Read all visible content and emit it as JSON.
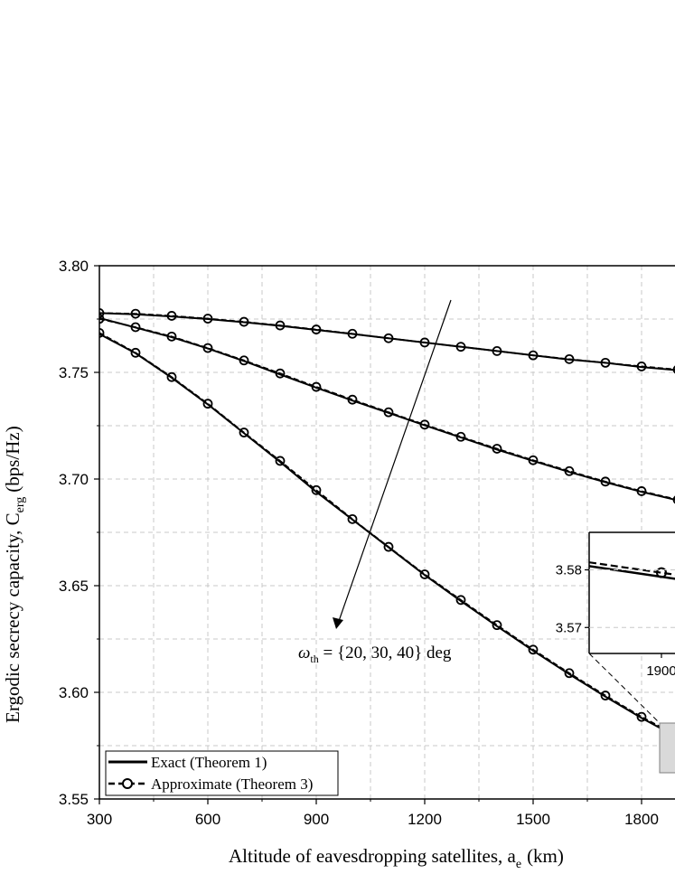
{
  "chart_data": {
    "type": "line",
    "xlabel": "Altitude of eavesdropping satellites, a",
    "xlabel_sub": "e",
    "xlabel_unit": "(km)",
    "ylabel": "Ergodic secrecy capacity, C",
    "ylabel_sub": "erg",
    "ylabel_unit": "(bps/Hz)",
    "xlim": [
      300,
      1900
    ],
    "ylim": [
      3.55,
      3.8
    ],
    "xticks": [
      "300",
      "600",
      "900",
      "1200",
      "1500",
      "1800"
    ],
    "yticks": [
      "3.55",
      "3.60",
      "3.65",
      "3.70",
      "3.75",
      "3.80"
    ],
    "grid": true,
    "legend_position": "bottom-left",
    "legend": [
      "Exact (Theorem 1)",
      "Approximate (Theorem 3)"
    ],
    "annotation": {
      "symbol": "ω",
      "sub": "th",
      "text": " = {20, 30, 40} deg"
    },
    "x": [
      300,
      400,
      500,
      600,
      700,
      800,
      900,
      1000,
      1100,
      1200,
      1300,
      1400,
      1500,
      1600,
      1700,
      1800,
      1900
    ],
    "series": [
      {
        "name": "20 deg",
        "exact": [
          3.7778,
          3.7772,
          3.7762,
          3.775,
          3.7735,
          3.7718,
          3.7699,
          3.768,
          3.766,
          3.764,
          3.762,
          3.76,
          3.758,
          3.756,
          3.7545,
          3.7525,
          3.751
        ],
        "approx": [
          3.7778,
          3.7775,
          3.7765,
          3.7752,
          3.7737,
          3.772,
          3.7701,
          3.7681,
          3.766,
          3.764,
          3.762,
          3.76,
          3.758,
          3.7562,
          3.7545,
          3.7528,
          3.7513
        ]
      },
      {
        "name": "30 deg",
        "exact": [
          3.7755,
          3.771,
          3.7665,
          3.7612,
          3.7553,
          3.749,
          3.7428,
          3.7368,
          3.731,
          3.7252,
          3.7195,
          3.7138,
          3.7085,
          3.7033,
          3.6985,
          3.694,
          3.69
        ],
        "approx": [
          3.7751,
          3.7712,
          3.7668,
          3.7614,
          3.7556,
          3.7495,
          3.7432,
          3.7372,
          3.7313,
          3.7255,
          3.7198,
          3.7142,
          3.7088,
          3.7037,
          3.6988,
          3.6943,
          3.6903
        ]
      },
      {
        "name": "40 deg",
        "exact": [
          3.768,
          3.759,
          3.7475,
          3.735,
          3.7215,
          3.708,
          3.694,
          3.681,
          3.668,
          3.655,
          3.6428,
          3.631,
          3.6195,
          3.6085,
          3.598,
          3.588,
          3.5788
        ],
        "approx": [
          3.7685,
          3.7592,
          3.7478,
          3.7353,
          3.7218,
          3.7085,
          3.6948,
          3.6812,
          3.6682,
          3.6553,
          3.6433,
          3.6315,
          3.62,
          3.609,
          3.5985,
          3.5885,
          3.5795
        ]
      }
    ],
    "inset": {
      "xticks": [
        "1900"
      ],
      "yticks": [
        "3.57",
        "3.58"
      ],
      "ylim": [
        3.5655,
        3.5865
      ],
      "xlim": [
        1880,
        1940
      ]
    }
  }
}
